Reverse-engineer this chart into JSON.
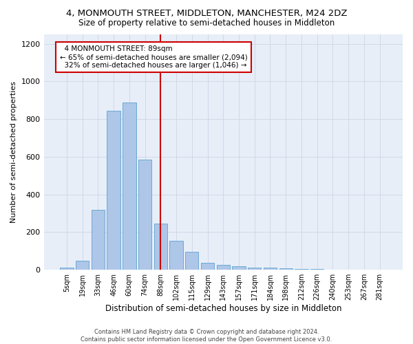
{
  "title": "4, MONMOUTH STREET, MIDDLETON, MANCHESTER, M24 2DZ",
  "subtitle": "Size of property relative to semi-detached houses in Middleton",
  "xlabel": "Distribution of semi-detached houses by size in Middleton",
  "ylabel": "Number of semi-detached properties",
  "footer1": "Contains HM Land Registry data © Crown copyright and database right 2024.",
  "footer2": "Contains public sector information licensed under the Open Government Licence v3.0.",
  "bar_labels": [
    "5sqm",
    "19sqm",
    "33sqm",
    "46sqm",
    "60sqm",
    "74sqm",
    "88sqm",
    "102sqm",
    "115sqm",
    "129sqm",
    "143sqm",
    "157sqm",
    "171sqm",
    "184sqm",
    "198sqm",
    "212sqm",
    "226sqm",
    "240sqm",
    "253sqm",
    "267sqm",
    "281sqm"
  ],
  "bar_values": [
    10,
    48,
    320,
    845,
    890,
    585,
    245,
    155,
    97,
    38,
    25,
    18,
    10,
    12,
    8,
    5,
    3,
    2,
    2,
    1,
    1
  ],
  "bar_color": "#aec6e8",
  "bar_edge_color": "#6aaad4",
  "property_label": "4 MONMOUTH STREET: 89sqm",
  "pct_smaller": 65,
  "n_smaller": 2094,
  "pct_larger": 32,
  "n_larger": 1046,
  "vline_index": 6,
  "annotation_box_color": "#ffffff",
  "annotation_box_edge": "#cc0000",
  "vline_color": "#cc0000",
  "ylim": [
    0,
    1250
  ],
  "yticks": [
    0,
    200,
    400,
    600,
    800,
    1000,
    1200
  ],
  "grid_color": "#d0d8e8",
  "background_color": "#e8eef8"
}
